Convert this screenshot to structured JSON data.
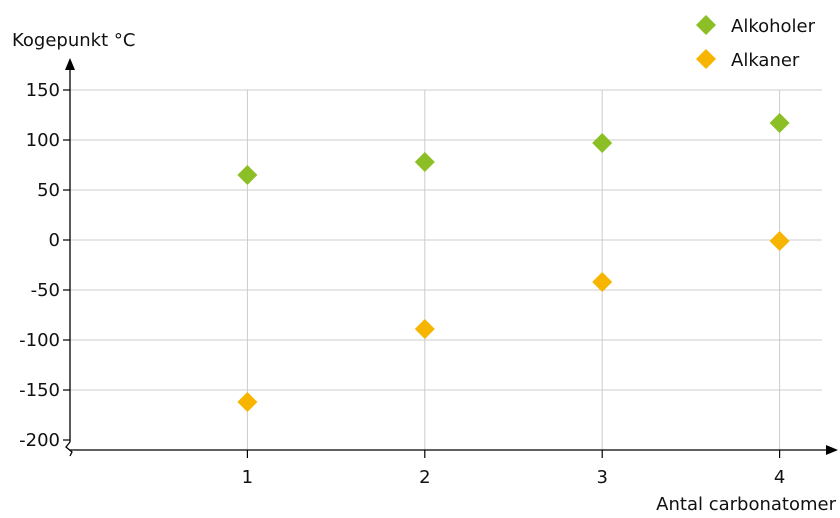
{
  "chart_data": {
    "type": "scatter",
    "ylabel": "Kogepunkt °C",
    "xlabel": "Antal carbonatomer",
    "x_ticks": [
      "1",
      "2",
      "3",
      "4"
    ],
    "y_ticks": [
      "150",
      "100",
      "50",
      "0",
      "-50",
      "-100",
      "-150",
      "-200"
    ],
    "xlim": [
      0,
      4.3
    ],
    "ylim": [
      -200,
      150
    ],
    "grid": true,
    "legend_position": "top-right",
    "series": [
      {
        "name": "Alkoholer",
        "color": "#8cbf26",
        "marker": "diamond",
        "x": [
          1,
          2,
          3,
          4
        ],
        "y": [
          65,
          78,
          97,
          117
        ]
      },
      {
        "name": "Alkaner",
        "color": "#f7b500",
        "marker": "diamond",
        "x": [
          1,
          2,
          3,
          4
        ],
        "y": [
          -162,
          -89,
          -42,
          -1
        ]
      }
    ]
  }
}
